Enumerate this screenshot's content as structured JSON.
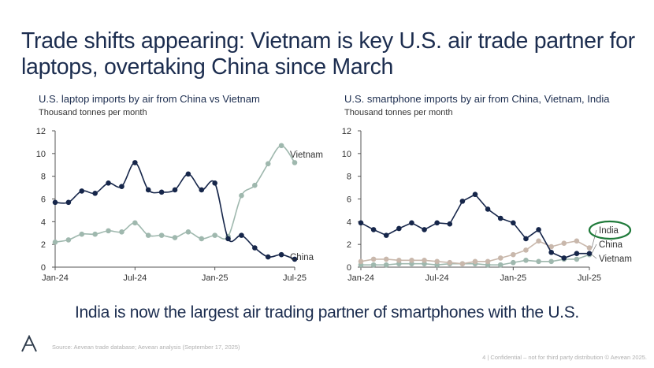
{
  "title": "Trade shifts appearing: Vietnam is key U.S. air trade partner for laptops, overtaking China since March",
  "takeaway": "India is now the largest air trading partner of smartphones with the U.S.",
  "source": "Source: Aevean trade database; Aevean analysis (September 17, 2025)",
  "footer": "4 | Confidential – not for third party distribution © Aevean 2025.",
  "colors": {
    "china": "#16264a",
    "vietnam": "#9fb8ae",
    "india": "#c9b8ac",
    "highlight": "#1f7a3a",
    "text": "#1c2d4f"
  },
  "chart_data": [
    {
      "type": "line",
      "title": "U.S. laptop imports by air from China vs Vietnam",
      "subtitle": "Thousand tonnes per month",
      "ylim": [
        0,
        12
      ],
      "yticks": [
        "0",
        "2",
        "4",
        "6",
        "8",
        "10",
        "12"
      ],
      "xtick_labels": [
        "Jan-24",
        "Jul-24",
        "Jan-25",
        "Jul-25"
      ],
      "x": [
        "Jan-24",
        "Feb-24",
        "Mar-24",
        "Apr-24",
        "May-24",
        "Jun-24",
        "Jul-24",
        "Aug-24",
        "Sep-24",
        "Oct-24",
        "Nov-24",
        "Dec-24",
        "Jan-25",
        "Feb-25",
        "Mar-25",
        "Apr-25",
        "May-25",
        "Jun-25",
        "Jul-25"
      ],
      "series": [
        {
          "name": "China",
          "color": "#16264a",
          "values": [
            5.7,
            5.7,
            6.7,
            6.5,
            7.4,
            7.1,
            9.2,
            6.8,
            6.6,
            6.8,
            8.2,
            6.8,
            7.4,
            2.5,
            2.8,
            1.7,
            0.9,
            1.1,
            0.7
          ]
        },
        {
          "name": "Vietnam",
          "color": "#9fb8ae",
          "values": [
            2.2,
            2.4,
            2.9,
            2.9,
            3.2,
            3.1,
            3.9,
            2.8,
            2.8,
            2.6,
            3.1,
            2.5,
            2.8,
            2.7,
            6.3,
            7.2,
            9.1,
            10.7,
            9.2
          ]
        }
      ]
    },
    {
      "type": "line",
      "title": "U.S. smartphone imports by air from China, Vietnam, India",
      "subtitle": "Thousand tonnes per month",
      "ylim": [
        0,
        12
      ],
      "yticks": [
        "0",
        "2",
        "4",
        "6",
        "8",
        "10",
        "12"
      ],
      "xtick_labels": [
        "Jan-24",
        "Jul-24",
        "Jan-25",
        "Jul-25"
      ],
      "x": [
        "Jan-24",
        "Feb-24",
        "Mar-24",
        "Apr-24",
        "May-24",
        "Jun-24",
        "Jul-24",
        "Aug-24",
        "Sep-24",
        "Oct-24",
        "Nov-24",
        "Dec-24",
        "Jan-25",
        "Feb-25",
        "Mar-25",
        "Apr-25",
        "May-25",
        "Jun-25",
        "Jul-25"
      ],
      "series": [
        {
          "name": "China",
          "color": "#16264a",
          "values": [
            3.9,
            3.3,
            2.8,
            3.4,
            3.9,
            3.3,
            3.9,
            3.8,
            5.8,
            6.4,
            5.1,
            4.3,
            3.9,
            2.5,
            3.3,
            1.3,
            0.8,
            1.2,
            1.2
          ]
        },
        {
          "name": "India",
          "color": "#c9b8ac",
          "values": [
            0.5,
            0.7,
            0.7,
            0.6,
            0.6,
            0.6,
            0.5,
            0.4,
            0.3,
            0.5,
            0.5,
            0.8,
            1.1,
            1.5,
            2.3,
            1.8,
            2.1,
            2.3,
            1.7
          ]
        },
        {
          "name": "Vietnam",
          "color": "#9fb8ae",
          "values": [
            0.2,
            0.2,
            0.2,
            0.3,
            0.3,
            0.3,
            0.2,
            0.3,
            0.3,
            0.3,
            0.2,
            0.2,
            0.4,
            0.6,
            0.5,
            0.5,
            0.7,
            0.7,
            1.1
          ]
        }
      ],
      "highlighted_label": "India"
    }
  ]
}
